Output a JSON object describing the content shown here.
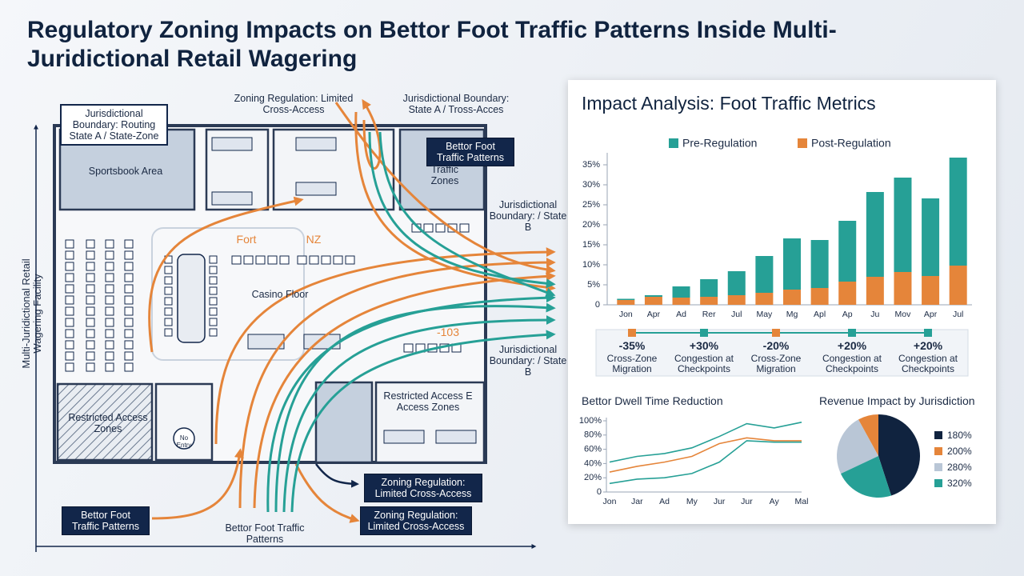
{
  "header": {
    "title": "Regulatory Zoning Impacts on Bettor Foot Traffic Patterns Inside Multi-Juridictional Retail Wagering"
  },
  "floor_plan": {
    "side_label": "Multi-Juridictional Retail Wagering Facility",
    "boundary_a": "Jurisdictional Boundary: Routing State A / State-Zone",
    "zoning_top": "Zoning Regulation: Limited Cross-Access",
    "boundary_top": "Jurisdictional Boundary: State A / Tross-Acces",
    "bettor_box_top": "Bettor Foot Traffic Patterns",
    "traffic_zones": "Traffic Zones",
    "sportsbook": "Sportsbook Area",
    "boundary_b1": "Jurisdictional Boundary: / State B",
    "fort": "Fort",
    "nz": "NZ",
    "casino": "Casino Floor",
    "n103": "-103",
    "boundary_b2": "Jurisdictional Boundary: / State B",
    "restricted_right": "Restricted Access E Access Zones",
    "restricted_left": "Restricted Access Zones",
    "no_entry": "No Entry",
    "zoning_box1": "Zoning Regulation: Limited Cross-Access",
    "zoning_box2": "Zoning Regulation: Limited Cross-Access",
    "bettor_box_bottom": "Bettor Foot Traffic Patterns",
    "bettor_bottom": "Bettor Foot Traffic Patterns"
  },
  "panel": {
    "title": "Impact Analysis: Foot Traffic Metrics",
    "metrics": [
      {
        "value": "-35%",
        "label": "Cross-Zone Migration"
      },
      {
        "value": "+30%",
        "label": "Congestion at Checkpoints"
      },
      {
        "value": "-20%",
        "label": "Cross-Zone Migration"
      },
      {
        "value": "+20%",
        "label": "Congestion at Checkpoints"
      },
      {
        "value": "+20%",
        "label": "Congestion at Checkpoints"
      }
    ]
  },
  "chart_data": [
    {
      "type": "bar",
      "stacked": true,
      "categories": [
        "Jon",
        "Apr",
        "Ad",
        "Rer",
        "Jul",
        "May",
        "Mg",
        "Apl",
        "Ap",
        "Ju",
        "Mov",
        "Apr",
        "Jul"
      ],
      "series": [
        {
          "name": "Pre-Regulation",
          "color": "#26a096",
          "values": [
            0.3,
            0.4,
            2.8,
            4.4,
            6.0,
            9.2,
            12.8,
            12.0,
            15.2,
            21.2,
            23.6,
            19.4,
            27.0
          ]
        },
        {
          "name": "Post-Regulation",
          "color": "#e5853a",
          "values": [
            1.2,
            2.0,
            1.8,
            2.0,
            2.4,
            3.0,
            3.8,
            4.2,
            5.8,
            7.0,
            8.2,
            7.2,
            9.8
          ]
        }
      ],
      "ylim": [
        0,
        38
      ],
      "yticks": [
        0,
        {
          "value": 5,
          "label": "5%"
        },
        {
          "value": 10,
          "label": "10%"
        },
        {
          "value": 15,
          "label": "15%"
        },
        {
          "value": 20,
          "label": "20%"
        },
        {
          "value": 25,
          "label": "25%"
        },
        {
          "value": 30,
          "label": "30%"
        },
        {
          "value": 35,
          "label": "35%"
        }
      ]
    },
    {
      "type": "line",
      "title": "Bettor Dwell Time Reduction",
      "categories": [
        "Jon",
        "Jar",
        "Ad",
        "My",
        "Jur",
        "Jur",
        "Ay",
        "Mal"
      ],
      "series": [
        {
          "color": "#26a096",
          "values": [
            42,
            50,
            54,
            62,
            78,
            96,
            90,
            98
          ]
        },
        {
          "color": "#e5853a",
          "values": [
            28,
            36,
            42,
            50,
            68,
            76,
            72,
            72
          ]
        },
        {
          "color": "#26a096",
          "values": [
            12,
            18,
            20,
            26,
            42,
            72,
            70,
            70
          ]
        }
      ],
      "ylim": [
        0,
        100
      ],
      "yticks": [
        0,
        {
          "value": 20,
          "label": "20%"
        },
        {
          "value": 40,
          "label": "40%"
        },
        {
          "value": 60,
          "label": "60%"
        },
        {
          "value": 80,
          "label": "80%"
        },
        {
          "value": 100,
          "label": "100%"
        }
      ]
    },
    {
      "type": "pie",
      "title": "Revenue Impact by Jurisdiction",
      "series": [
        {
          "name": "180%",
          "color": "#10233f",
          "values": [
            45
          ]
        },
        {
          "name": "200%",
          "color": "#e5853a",
          "values": [
            8
          ]
        },
        {
          "name": "280%",
          "color": "#b9c6d6",
          "values": [
            24
          ]
        },
        {
          "name": "320%",
          "color": "#26a096",
          "values": [
            23
          ]
        }
      ]
    }
  ]
}
